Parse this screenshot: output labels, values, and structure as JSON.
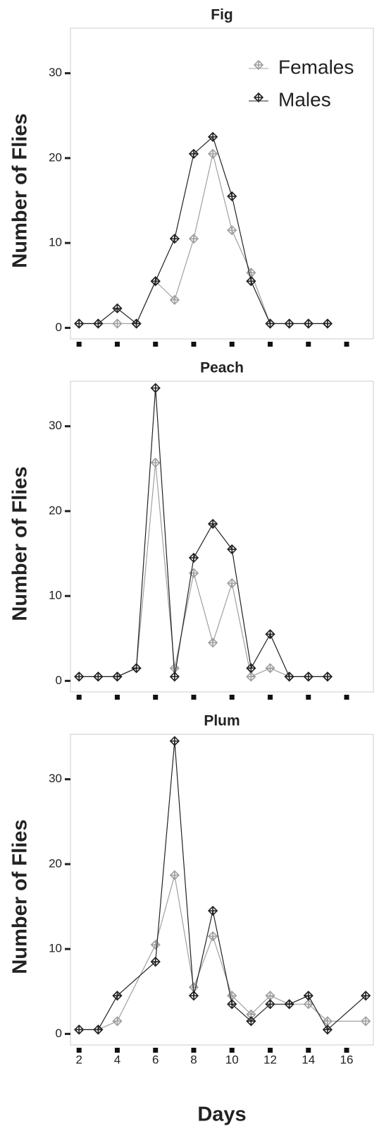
{
  "chart_data": [
    {
      "type": "line",
      "title": "Fig",
      "ylabel": "Number of Flies",
      "x": [
        2,
        3,
        4,
        5,
        6,
        7,
        8,
        9,
        10,
        11,
        12,
        13,
        14,
        15
      ],
      "series": [
        {
          "name": "Females",
          "color": "#a0a0a0",
          "values": [
            0.5,
            0.5,
            0.5,
            0.5,
            5.5,
            3.3,
            10.5,
            20.5,
            11.5,
            6.5,
            0.5,
            0.5,
            0.5,
            0.5
          ]
        },
        {
          "name": "Males",
          "color": "#222222",
          "values": [
            0.5,
            0.5,
            2.3,
            0.5,
            5.5,
            10.5,
            20.5,
            22.5,
            15.5,
            5.5,
            0.5,
            0.5,
            0.5,
            0.5
          ]
        }
      ],
      "xlim": [
        1.55,
        17.4
      ],
      "ylim": [
        -1.3,
        35.3
      ],
      "xticks": [
        2,
        4,
        6,
        8,
        10,
        12,
        14,
        16
      ],
      "yticks": [
        0,
        10,
        20,
        30
      ],
      "show_xtick_labels": false,
      "legend": "top-right"
    },
    {
      "type": "line",
      "title": "Peach",
      "ylabel": "Number of Flies",
      "x": [
        2,
        3,
        4,
        5,
        6,
        7,
        8,
        9,
        10,
        11,
        12,
        13,
        14,
        15
      ],
      "series": [
        {
          "name": "Females",
          "color": "#a0a0a0",
          "values": [
            0.5,
            0.5,
            0.5,
            1.5,
            25.7,
            1.5,
            12.7,
            4.5,
            11.5,
            0.5,
            1.5,
            0.5,
            0.5,
            0.5
          ]
        },
        {
          "name": "Males",
          "color": "#222222",
          "values": [
            0.5,
            0.5,
            0.5,
            1.5,
            34.5,
            0.5,
            14.5,
            18.5,
            15.5,
            1.5,
            5.5,
            0.5,
            0.5,
            0.5
          ]
        }
      ],
      "xlim": [
        1.55,
        17.4
      ],
      "ylim": [
        -1.3,
        35.3
      ],
      "xticks": [
        2,
        4,
        6,
        8,
        10,
        12,
        14,
        16
      ],
      "yticks": [
        0,
        10,
        20,
        30
      ],
      "show_xtick_labels": false
    },
    {
      "type": "line",
      "title": "Plum",
      "ylabel": "Number of Flies",
      "xlabel": "Days",
      "x": [
        2,
        3,
        4,
        6,
        7,
        8,
        9,
        10,
        11,
        12,
        13,
        14,
        15,
        17
      ],
      "series": [
        {
          "name": "Females",
          "color": "#a0a0a0",
          "values": [
            0.5,
            0.5,
            1.5,
            10.5,
            18.7,
            5.5,
            11.5,
            4.5,
            2.3,
            4.5,
            3.5,
            3.5,
            1.5,
            1.5
          ]
        },
        {
          "name": "Males",
          "color": "#222222",
          "values": [
            0.5,
            0.5,
            4.5,
            8.5,
            34.5,
            4.5,
            14.5,
            3.5,
            1.5,
            3.5,
            3.5,
            4.5,
            0.5,
            4.5
          ]
        }
      ],
      "xlim": [
        1.55,
        17.4
      ],
      "ylim": [
        -1.3,
        35.3
      ],
      "xticks": [
        2,
        4,
        6,
        8,
        10,
        12,
        14,
        16
      ],
      "yticks": [
        0,
        10,
        20,
        30
      ],
      "show_xtick_labels": true
    }
  ]
}
